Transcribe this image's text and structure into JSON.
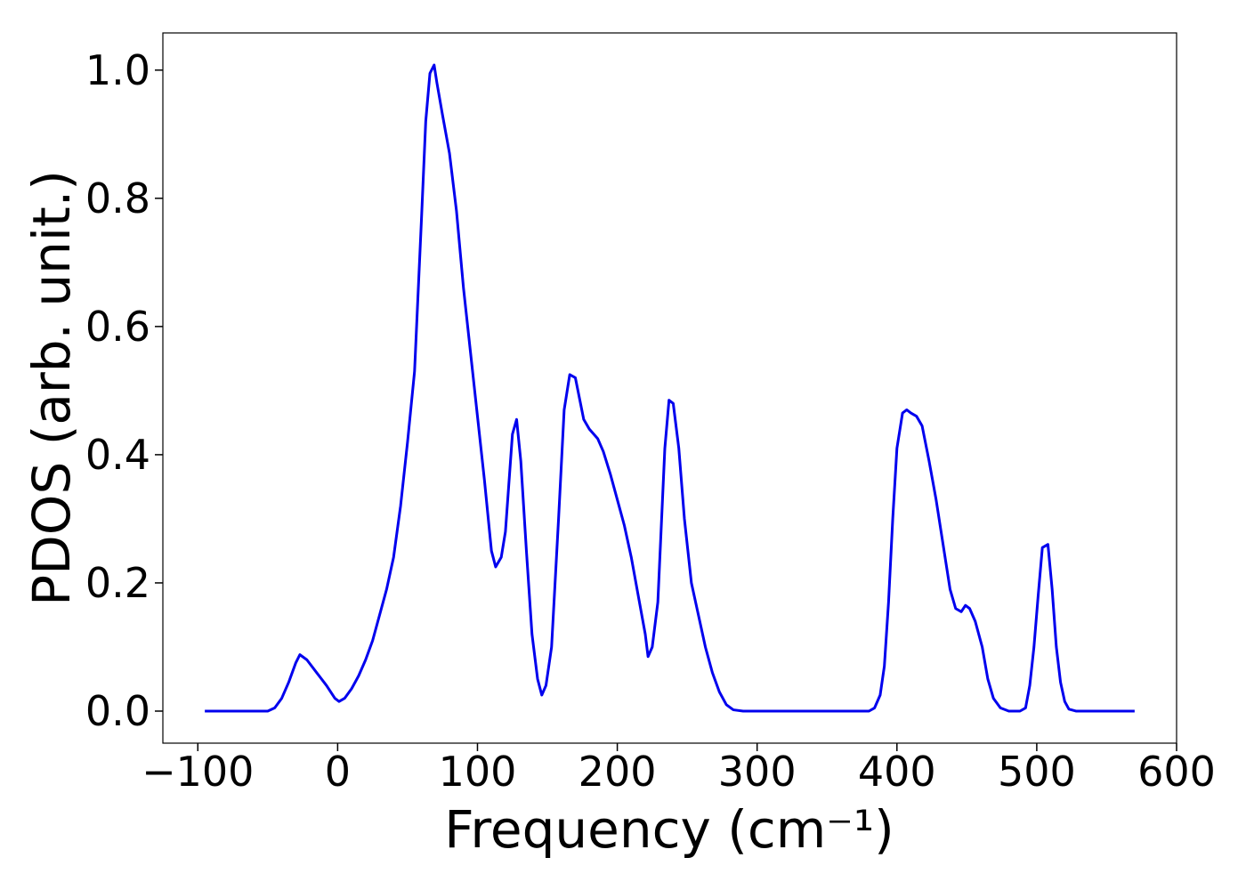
{
  "chart_data": {
    "type": "line",
    "xlabel": "Frequency (cm⁻¹)",
    "ylabel": "PDOS (arb. unit.)",
    "x": [
      -95,
      -50,
      -45,
      -40,
      -35,
      -30,
      -27,
      -22,
      -15,
      -8,
      -2,
      1,
      5,
      10,
      15,
      20,
      25,
      30,
      35,
      40,
      45,
      50,
      55,
      60,
      63,
      66,
      69,
      71,
      75,
      80,
      85,
      90,
      95,
      100,
      105,
      110,
      113,
      117,
      120,
      125,
      128,
      131,
      135,
      139,
      143,
      146,
      149,
      153,
      158,
      162,
      166,
      170,
      176,
      180,
      186,
      190,
      195,
      200,
      205,
      210,
      215,
      220,
      222,
      225,
      229,
      234,
      237,
      240,
      244,
      248,
      253,
      258,
      263,
      268,
      273,
      278,
      283,
      290,
      380,
      384,
      388,
      391,
      394,
      397,
      400,
      404,
      407,
      410,
      414,
      418,
      423,
      428,
      433,
      438,
      442,
      446,
      449,
      452,
      456,
      461,
      465,
      469,
      474,
      480,
      488,
      492,
      495,
      498,
      501,
      504,
      508,
      511,
      514,
      517,
      520,
      523,
      528,
      570
    ],
    "series": [
      {
        "name": "PDOS",
        "color": "#0000ee",
        "values": [
          0,
          0,
          0.005,
          0.02,
          0.045,
          0.075,
          0.088,
          0.08,
          0.06,
          0.04,
          0.02,
          0.015,
          0.02,
          0.035,
          0.055,
          0.08,
          0.11,
          0.15,
          0.19,
          0.24,
          0.32,
          0.42,
          0.53,
          0.77,
          0.92,
          0.995,
          1.008,
          0.98,
          0.93,
          0.87,
          0.78,
          0.66,
          0.56,
          0.46,
          0.36,
          0.25,
          0.225,
          0.24,
          0.28,
          0.432,
          0.455,
          0.39,
          0.25,
          0.12,
          0.05,
          0.025,
          0.04,
          0.1,
          0.3,
          0.47,
          0.525,
          0.52,
          0.455,
          0.44,
          0.425,
          0.405,
          0.37,
          0.33,
          0.29,
          0.24,
          0.18,
          0.12,
          0.085,
          0.1,
          0.17,
          0.41,
          0.485,
          0.48,
          0.41,
          0.3,
          0.2,
          0.15,
          0.1,
          0.06,
          0.03,
          0.01,
          0.002,
          0,
          0,
          0.005,
          0.025,
          0.07,
          0.17,
          0.3,
          0.41,
          0.465,
          0.47,
          0.465,
          0.46,
          0.445,
          0.39,
          0.33,
          0.26,
          0.19,
          0.16,
          0.155,
          0.165,
          0.16,
          0.14,
          0.1,
          0.05,
          0.02,
          0.005,
          0,
          0,
          0.005,
          0.04,
          0.1,
          0.18,
          0.255,
          0.26,
          0.19,
          0.1,
          0.045,
          0.015,
          0.003,
          0,
          0
        ]
      }
    ],
    "xlim": [
      -125,
      600
    ],
    "ylim": [
      -0.05,
      1.058
    ],
    "xticks": [
      {
        "value": -100,
        "label": "−100"
      },
      0,
      100,
      200,
      300,
      400,
      500,
      600
    ],
    "yticks": [
      {
        "value": 0,
        "label": "0.0"
      },
      {
        "value": 0.2,
        "label": "0.2"
      },
      {
        "value": 0.4,
        "label": "0.4"
      },
      {
        "value": 0.6,
        "label": "0.6"
      },
      {
        "value": 0.8,
        "label": "0.8"
      },
      {
        "value": 1,
        "label": "1.0"
      }
    ],
    "grid": false
  }
}
